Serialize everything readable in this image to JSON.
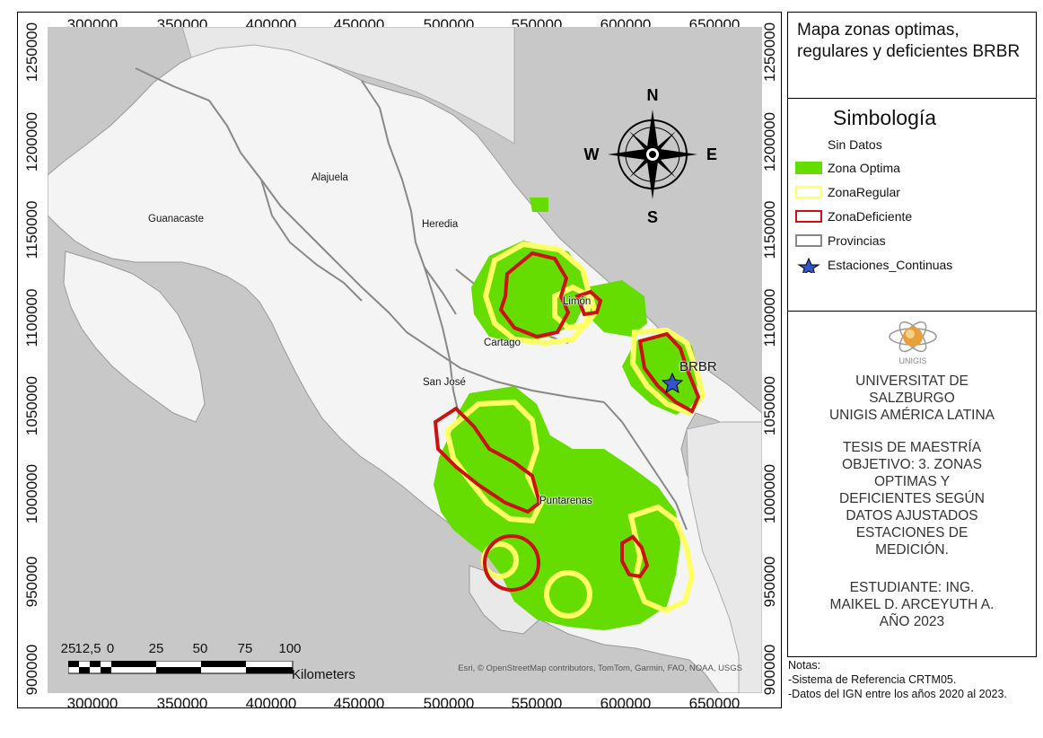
{
  "map": {
    "x_ticks": [
      "300000",
      "350000",
      "400000",
      "450000",
      "500000",
      "550000",
      "600000",
      "650000"
    ],
    "y_ticks": [
      "1250000",
      "1200000",
      "1150000",
      "1100000",
      "1050000",
      "1000000",
      "950000",
      "900000"
    ],
    "place_labels": {
      "guanacaste": "Guanacaste",
      "alajuela": "Alajuela",
      "heredia": "Heredia",
      "limon": "Limón",
      "cartago": "Cartago",
      "san_jose": "San José",
      "puntarenas": "Puntarenas"
    },
    "station_label": "BRBR",
    "attribution": "Esri, © OpenStreetMap contributors, TomTom, Garmin, FAO, NOAA, USGS",
    "north_arrow": {
      "n": "N",
      "s": "S",
      "e": "E",
      "w": "W"
    },
    "scale_bar": {
      "labels": [
        "25",
        "12,5",
        "0",
        "25",
        "50",
        "75",
        "100"
      ],
      "unit": "Kilometers"
    },
    "colors": {
      "sea": "#c8c8c8",
      "land": "#f4f4f4",
      "zona_optima": "#66dd00",
      "zona_regular": "#ffff66",
      "zona_deficiente": "#cc1111",
      "provincias": "#888888",
      "station": "#3355cc"
    }
  },
  "title": "Mapa zonas optimas, regulares y deficientes BRBR",
  "legend": {
    "heading": "Simbología",
    "items": [
      {
        "label": "Sin Datos",
        "icon": "none-swatch"
      },
      {
        "label": "Zona Optima",
        "icon": "green-fill-swatch"
      },
      {
        "label": "ZonaRegular",
        "icon": "yellow-outline-swatch"
      },
      {
        "label": "ZonaDeficiente",
        "icon": "red-outline-swatch"
      },
      {
        "label": "Provincias",
        "icon": "gray-outline-swatch"
      },
      {
        "label": "Estaciones_Continuas",
        "icon": "blue-star-icon"
      }
    ]
  },
  "info": {
    "university": [
      "UNIVERSITAT DE",
      "SALZBURGO",
      "UNIGIS AMÉRICA LATINA"
    ],
    "logo_text": "UNIGIS",
    "thesis": [
      "TESIS DE MAESTRÍA",
      "OBJETIVO: 3. ZONAS",
      "OPTIMAS Y",
      "DEFICIENTES SEGÚN",
      "DATOS AJUSTADOS",
      "ESTACIONES DE",
      "MEDICIÓN."
    ],
    "student": [
      "ESTUDIANTE: ING.",
      "MAIKEL D. ARCEYUTH A.",
      "AÑO 2023"
    ]
  },
  "notes": {
    "heading": "Notas:",
    "lines": [
      "-Sistema de Referencia CRTM05.",
      "-Datos del IGN entre los años 2020 al 2023."
    ]
  }
}
